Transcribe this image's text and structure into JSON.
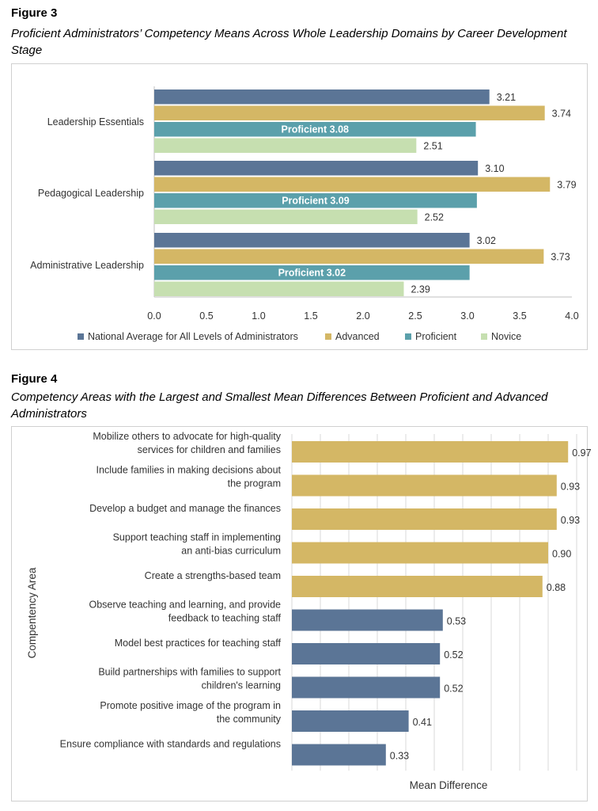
{
  "figure3": {
    "label": "Figure 3",
    "caption": "Proficient Administrators’ Competency Means Across Whole Leadership Domains by Career Development Stage"
  },
  "figure4": {
    "label": "Figure 4",
    "caption": "Competency Areas with the Largest and Smallest Mean Differences Between Proficient and Advanced Administrators"
  },
  "colors": {
    "national": "#5b7596",
    "advanced": "#d4b765",
    "proficient": "#5ba0ab",
    "novice": "#c6dfb0",
    "grid": "#d9d9d9",
    "border": "#cfcfcf"
  },
  "chart_data": [
    {
      "type": "bar",
      "orientation": "horizontal",
      "categories": [
        "Leadership Essentials",
        "Pedagogical Leadership",
        "Administrative Leadership"
      ],
      "series": [
        {
          "name": "National Average for All Levels of Administrators",
          "values": [
            3.21,
            3.1,
            3.02
          ],
          "labels": [
            "3.21",
            "3.10",
            "3.02"
          ]
        },
        {
          "name": "Advanced",
          "values": [
            3.74,
            3.79,
            3.73
          ],
          "labels": [
            "3.74",
            "3.79",
            "3.73"
          ]
        },
        {
          "name": "Proficient",
          "values": [
            3.08,
            3.09,
            3.02
          ],
          "labels": [
            "Proficient 3.08",
            "Proficient 3.09",
            "Proficient 3.02"
          ]
        },
        {
          "name": "Novice",
          "values": [
            2.51,
            2.52,
            2.39
          ],
          "labels": [
            "2.51",
            "2.52",
            "2.39"
          ]
        }
      ],
      "xlim": [
        0,
        4
      ],
      "xticks": [
        "0.0",
        "0.5",
        "1.0",
        "1.5",
        "2.0",
        "2.5",
        "3.0",
        "3.5",
        "4.0"
      ],
      "legend": "bottom",
      "grid": false
    },
    {
      "type": "bar",
      "orientation": "horizontal",
      "categories": [
        [
          "Mobilize others to advocate for high-quality",
          "services for children and families"
        ],
        [
          "Include families in making decisions about",
          "the program"
        ],
        [
          "Develop a budget and manage the finances"
        ],
        [
          "Support teaching staff in implementing",
          "an anti-bias curriculum"
        ],
        [
          "Create a strengths-based team"
        ],
        [
          "Observe teaching and learning, and provide",
          "feedback to teaching staff"
        ],
        [
          "Model best practices for teaching staff"
        ],
        [
          "Build partnerships with families to support",
          "children's learning"
        ],
        [
          "Promote positive image of the program in",
          "the community"
        ],
        [
          "Ensure compliance with standards and regulations"
        ]
      ],
      "values": [
        0.97,
        0.93,
        0.93,
        0.9,
        0.88,
        0.53,
        0.52,
        0.52,
        0.41,
        0.33
      ],
      "labels": [
        "0.97",
        "0.93",
        "0.93",
        "0.90",
        "0.88",
        "0.53",
        "0.52",
        "0.52",
        "0.41",
        "0.33"
      ],
      "groups": [
        "largest",
        "largest",
        "largest",
        "largest",
        "largest",
        "smallest",
        "smallest",
        "smallest",
        "smallest",
        "smallest"
      ],
      "xlabel": "Mean Difference",
      "ylabel": "Compentency Area",
      "xlim": [
        0,
        1
      ],
      "grid": true
    }
  ]
}
